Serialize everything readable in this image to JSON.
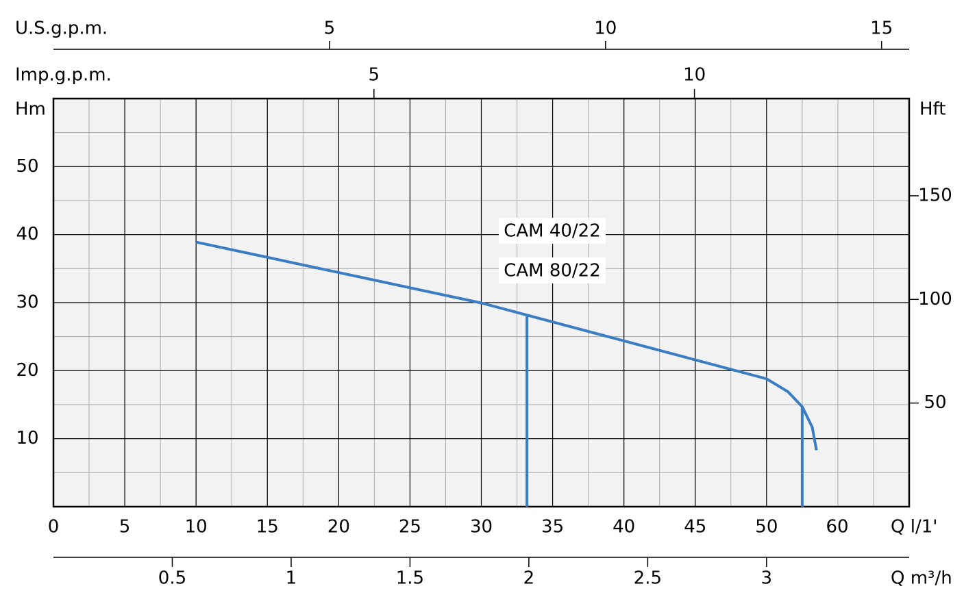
{
  "chart_data": {
    "type": "line",
    "x_label": "Q l/1'",
    "y_label": "Hm",
    "y2_label": "Hft",
    "x": [
      10,
      30,
      50,
      51.5,
      52.5,
      53.2,
      53.5
    ],
    "series": [
      {
        "color": "#3b7dc4",
        "values": [
          38.9,
          29.95,
          18.8,
          16.9,
          14.7,
          11.7,
          8.3
        ]
      }
    ],
    "limits": {
      "x": [
        33.2,
        52.5
      ],
      "values": [
        28.3,
        14.7
      ]
    },
    "annotations": [
      "CAM 40/22",
      "CAM 80/22"
    ],
    "xlim": [
      0,
      60
    ],
    "xticks": [
      0,
      5,
      10,
      15,
      20,
      25,
      30,
      35,
      40,
      45,
      50,
      60
    ],
    "ylim": [
      0,
      60
    ],
    "yticks": [
      10,
      20,
      30,
      40,
      50
    ],
    "y2lim": [
      0,
      196.9
    ],
    "y2ticks": [
      50,
      100,
      150
    ],
    "grid": true,
    "xminor": 2.5,
    "yminor": 5,
    "extra_axes": [
      {
        "label": "U.S.g.p.m.",
        "position": "top",
        "lim": [
          0,
          15.5
        ],
        "ticks": [
          5,
          10,
          15
        ]
      },
      {
        "label": "Imp.g.p.m.",
        "position": "top-inner",
        "lim": [
          0,
          13.35
        ],
        "ticks": [
          5,
          10
        ]
      },
      {
        "label": "Q m³/h",
        "position": "bottom",
        "lim": [
          0,
          3.6
        ],
        "ticks": [
          0.5,
          1,
          1.5,
          2,
          2.5,
          3
        ]
      }
    ]
  }
}
